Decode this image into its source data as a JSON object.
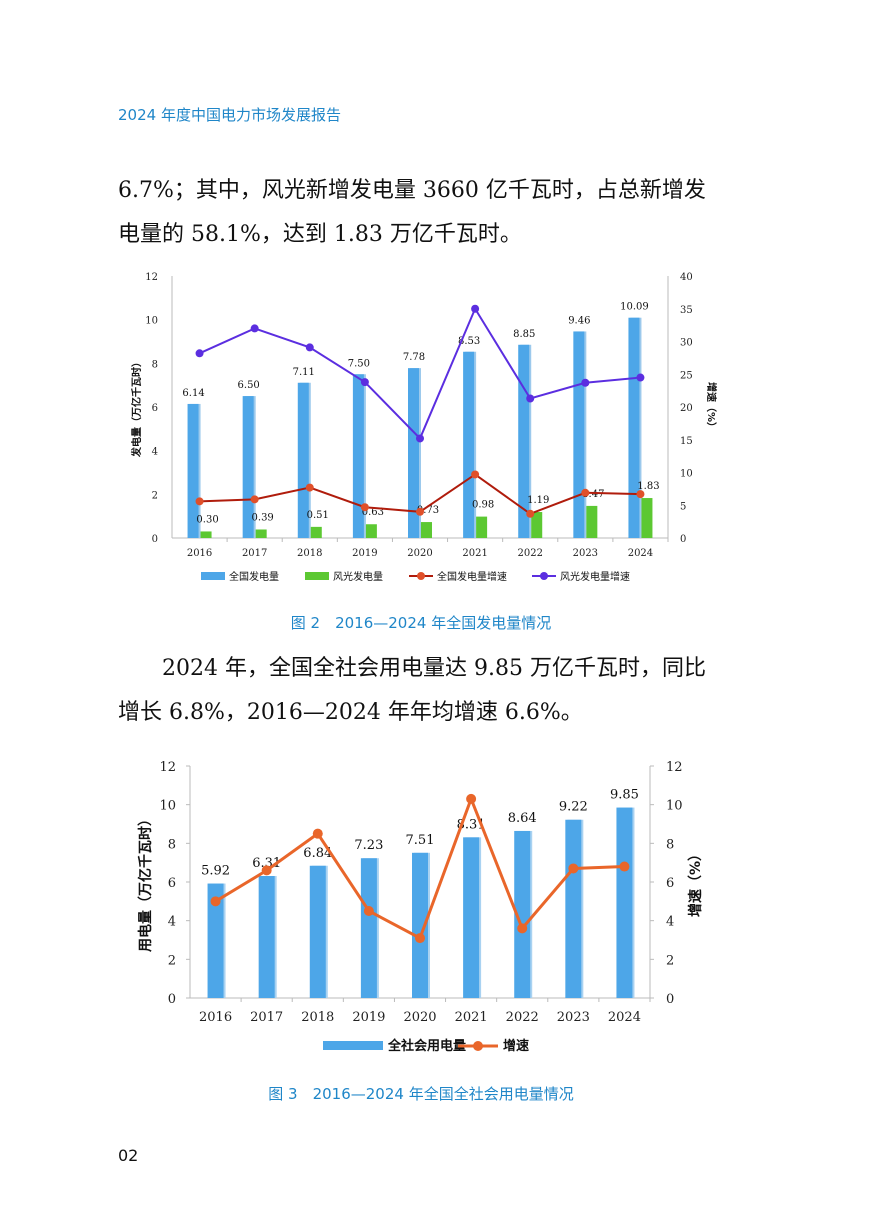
{
  "header": {
    "title": "2024 年度中国电力市场发展报告"
  },
  "para1": {
    "line1": "6.7%；其中，风光新增发电量 3660 亿千瓦时，占总新增发",
    "line2": "电量的 58.1%，达到 1.83 万亿千瓦时。"
  },
  "para2": {
    "line1": "2024 年，全国全社会用电量达 9.85 万亿千瓦时，同比",
    "line2": "增长 6.8%，2016—2024 年年均增速 6.6%。"
  },
  "captions": {
    "fig2": "图 2　2016—2024 年全国发电量情况",
    "fig3": "图 3　2016—2024 年全国全社会用电量情况"
  },
  "page_number": "02",
  "colors": {
    "accent": "#1f86c8",
    "blue_bar": "#4da6e8",
    "green_bar": "#5cc832",
    "red_line": "#b01c0c",
    "red_marker": "#e0502a",
    "purple_line": "#5b2ee0",
    "orange_line": "#e9662a"
  },
  "chart_data": [
    {
      "type": "bar",
      "categories": [
        "2016",
        "2017",
        "2018",
        "2019",
        "2020",
        "2021",
        "2022",
        "2023",
        "2024"
      ],
      "ylabel": "发电量（万亿千瓦时）",
      "y2label": "增速（%）",
      "ylim": [
        0,
        12
      ],
      "yticks": [
        "0",
        "2",
        "4",
        "6",
        "8",
        "10",
        "12"
      ],
      "y2lim": [
        0,
        40
      ],
      "y2ticks": [
        "0",
        "5",
        "10",
        "15",
        "20",
        "25",
        "30",
        "35",
        "40"
      ],
      "legend_position": "bottom",
      "series": [
        {
          "name": "全国发电量",
          "kind": "bar",
          "axis": "left",
          "values": [
            6.14,
            6.5,
            7.11,
            7.5,
            7.78,
            8.53,
            8.85,
            9.46,
            10.09
          ],
          "labels": [
            "6.14",
            "6.50",
            "7.11",
            "7.50",
            "7.78",
            "8.53",
            "8.85",
            "9.46",
            "10.09"
          ]
        },
        {
          "name": "风光发电量",
          "kind": "bar",
          "axis": "left",
          "values": [
            0.3,
            0.39,
            0.51,
            0.63,
            0.73,
            0.98,
            1.19,
            1.47,
            1.83
          ],
          "labels": [
            "0.30",
            "0.39",
            "0.51",
            "0.63",
            "0.73",
            "0.98",
            "1.19",
            "1.47",
            "1.83"
          ]
        },
        {
          "name": "全国发电量增速",
          "kind": "line",
          "axis": "right",
          "values": [
            5.6,
            5.9,
            7.7,
            4.7,
            4.0,
            9.7,
            3.7,
            6.9,
            6.7
          ]
        },
        {
          "name": "风光发电量增速",
          "kind": "line",
          "axis": "right",
          "values": [
            28.2,
            32.0,
            29.1,
            23.8,
            15.2,
            35.0,
            21.3,
            23.7,
            24.5
          ]
        }
      ]
    },
    {
      "type": "bar",
      "categories": [
        "2016",
        "2017",
        "2018",
        "2019",
        "2020",
        "2021",
        "2022",
        "2023",
        "2024"
      ],
      "ylabel": "用电量（万亿千瓦时）",
      "y2label": "增速（%）",
      "ylim": [
        0,
        12
      ],
      "yticks": [
        "0",
        "2",
        "4",
        "6",
        "8",
        "10",
        "12"
      ],
      "y2lim": [
        0,
        12
      ],
      "y2ticks": [
        "0",
        "2",
        "4",
        "6",
        "8",
        "10",
        "12"
      ],
      "legend_position": "bottom",
      "series": [
        {
          "name": "全社会用电量",
          "kind": "bar",
          "axis": "left",
          "values": [
            5.92,
            6.31,
            6.84,
            7.23,
            7.51,
            8.31,
            8.64,
            9.22,
            9.85
          ],
          "labels": [
            "5.92",
            "6.31",
            "6.84",
            "7.23",
            "7.51",
            "8.31",
            "8.64",
            "9.22",
            "9.85"
          ]
        },
        {
          "name": "增速",
          "kind": "line",
          "axis": "right",
          "values": [
            5.0,
            6.6,
            8.5,
            4.5,
            3.1,
            10.3,
            3.6,
            6.7,
            6.8
          ]
        }
      ]
    }
  ]
}
